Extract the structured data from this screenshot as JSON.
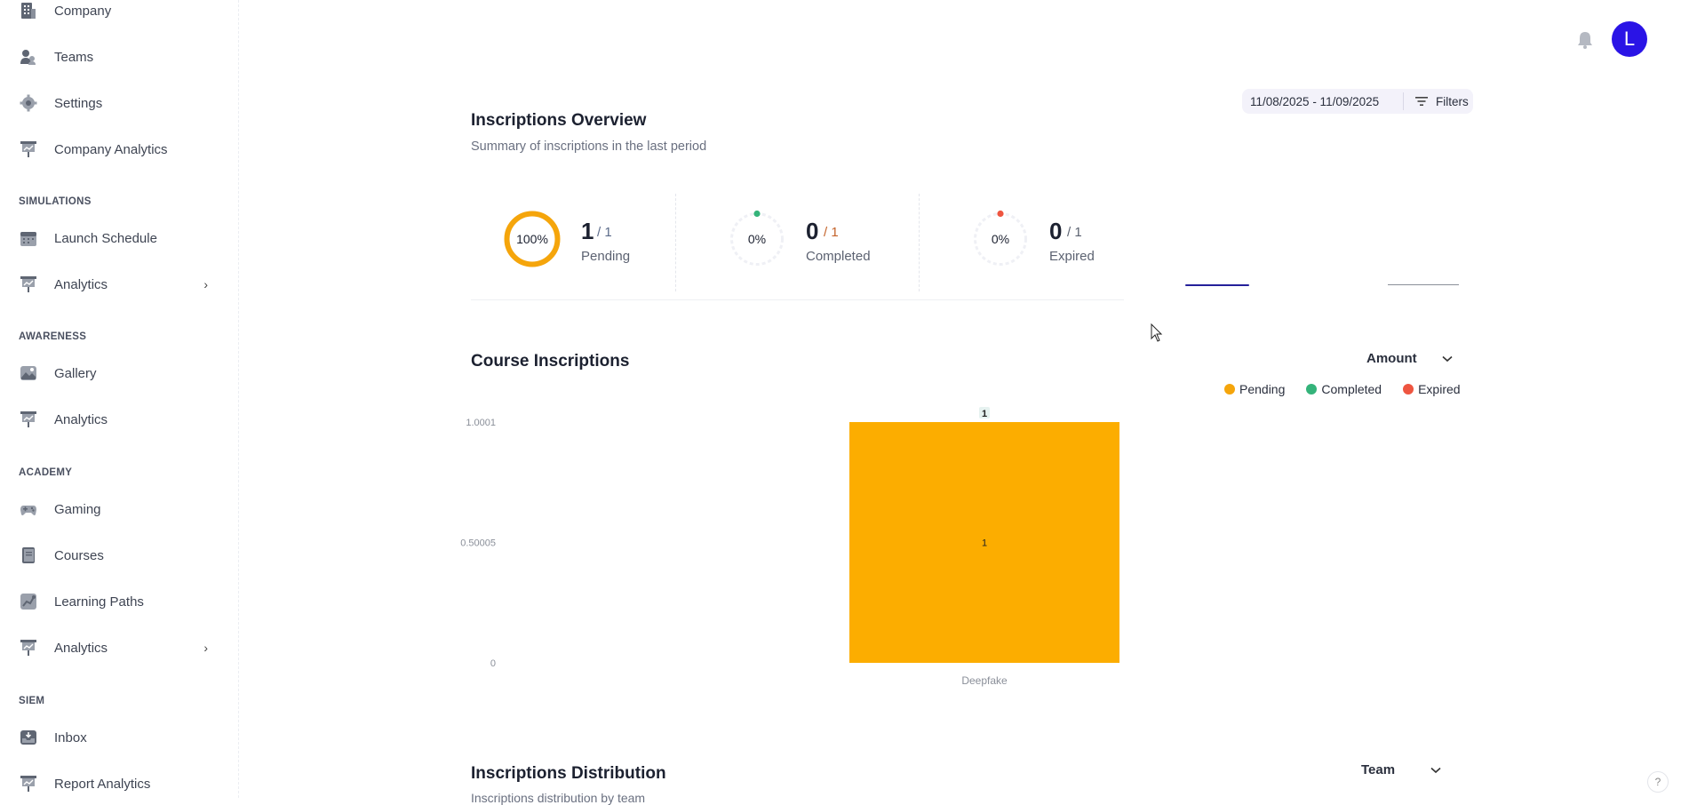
{
  "sidebar": {
    "items": [
      {
        "label": "Company",
        "icon": "building-icon"
      },
      {
        "label": "Teams",
        "icon": "teams-icon"
      },
      {
        "label": "Settings",
        "icon": "gear-icon"
      },
      {
        "label": "Company Analytics",
        "icon": "presentation-chart-icon"
      },
      {
        "label": "Launch Schedule",
        "icon": "calendar-icon"
      },
      {
        "label": "Analytics",
        "icon": "presentation-chart-icon"
      },
      {
        "label": "Gallery",
        "icon": "image-icon"
      },
      {
        "label": "Analytics",
        "icon": "presentation-chart-icon"
      },
      {
        "label": "Gaming",
        "icon": "gamepad-icon"
      },
      {
        "label": "Courses",
        "icon": "book-icon"
      },
      {
        "label": "Learning Paths",
        "icon": "path-icon"
      },
      {
        "label": "Analytics",
        "icon": "presentation-chart-icon"
      },
      {
        "label": "Inbox",
        "icon": "inbox-icon"
      },
      {
        "label": "Report Analytics",
        "icon": "presentation-chart-icon"
      }
    ],
    "sections": [
      "SIMULATIONS",
      "AWARENESS",
      "ACADEMY",
      "SIEM"
    ]
  },
  "header": {
    "avatar_initial": "L"
  },
  "overview": {
    "title": "Inscriptions Overview",
    "subtitle": "Summary of inscriptions in the last period",
    "date_range": "11/08/2025 - 11/09/2025",
    "filters_label": "Filters",
    "stats": [
      {
        "percent_label": "100%",
        "percent": 1.0,
        "value": "1",
        "total": "/ 1",
        "label": "Pending",
        "color": "#f5a50b"
      },
      {
        "percent_label": "0%",
        "percent": 0,
        "value": "0",
        "total": "/ 1",
        "label": "Completed",
        "color": "#34b37a"
      },
      {
        "percent_label": "0%",
        "percent": 0,
        "value": "0",
        "total": "/ 1",
        "label": "Expired",
        "color": "#ee5540"
      }
    ]
  },
  "course_inscriptions": {
    "title": "Course Inscriptions",
    "dropdown_value": "Amount",
    "legend": [
      {
        "label": "Pending",
        "color": "#f5a50b"
      },
      {
        "label": "Completed",
        "color": "#34b37a"
      },
      {
        "label": "Expired",
        "color": "#ee5540"
      }
    ]
  },
  "distribution": {
    "title": "Inscriptions Distribution",
    "subtitle": "Inscriptions distribution by team",
    "dropdown_value": "Team"
  },
  "help_label": "?",
  "chart_data": {
    "type": "bar",
    "stacked": true,
    "categories": [
      "Deepfake"
    ],
    "series": [
      {
        "name": "Pending",
        "values": [
          1
        ],
        "color": "#fcad00"
      },
      {
        "name": "Completed",
        "values": [
          0
        ],
        "color": "#34b37a"
      },
      {
        "name": "Expired",
        "values": [
          0
        ],
        "color": "#ee5540"
      }
    ],
    "y_ticks": [
      "0",
      "0.50005",
      "1.0001"
    ],
    "ylim": [
      0,
      1.0001
    ],
    "total_labels": [
      "1"
    ],
    "bar_labels": [
      "1"
    ],
    "grid": false
  }
}
